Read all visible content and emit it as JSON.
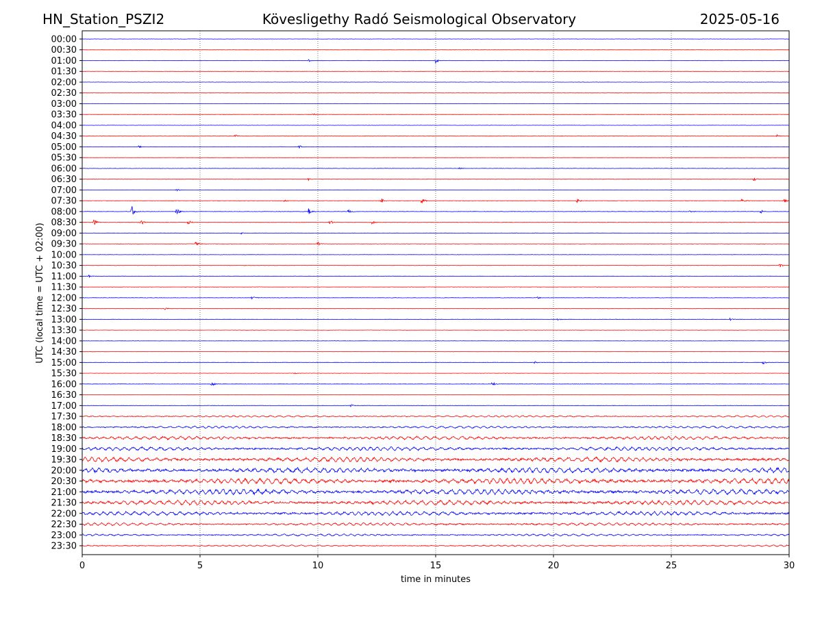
{
  "chart_data": {
    "type": "line",
    "title_left": "HN_Station_PSZI2",
    "title": "Kövesligethy Radó Seismological Observatory",
    "title_right": "2025-05-16",
    "xlabel": "time in minutes",
    "ylabel": "UTC (local time = UTC + 02:00)",
    "xlim": [
      0,
      30
    ],
    "x_ticks": [
      0,
      5,
      10,
      15,
      20,
      25,
      30
    ],
    "x_tick_labels": [
      "0",
      "5",
      "10",
      "15",
      "20",
      "25",
      "30"
    ],
    "grid": "vertical dotted at x ticks",
    "row_labels": [
      "00:00",
      "00:30",
      "01:00",
      "01:30",
      "02:00",
      "02:30",
      "03:00",
      "03:30",
      "04:00",
      "04:30",
      "05:00",
      "05:30",
      "06:00",
      "06:30",
      "07:00",
      "07:30",
      "08:00",
      "08:30",
      "09:00",
      "09:30",
      "10:00",
      "10:30",
      "11:00",
      "11:30",
      "12:00",
      "12:30",
      "13:00",
      "13:30",
      "14:00",
      "14:30",
      "15:00",
      "15:30",
      "16:00",
      "16:30",
      "17:00",
      "17:30",
      "18:00",
      "18:30",
      "19:00",
      "19:30",
      "20:00",
      "20:30",
      "21:00",
      "21:30",
      "22:00",
      "22:30",
      "23:00",
      "23:30"
    ],
    "row_colors": [
      "#0000ff",
      "#ff0000"
    ],
    "noise_level": [
      0.4,
      0.4,
      0.5,
      0.4,
      0.4,
      0.4,
      0.4,
      0.4,
      0.4,
      0.5,
      0.5,
      0.4,
      0.5,
      0.5,
      0.4,
      0.5,
      0.6,
      0.6,
      0.5,
      0.5,
      0.4,
      0.5,
      0.5,
      0.5,
      0.5,
      0.5,
      0.5,
      0.4,
      0.4,
      0.4,
      0.5,
      0.4,
      0.5,
      0.4,
      0.5,
      1.0,
      1.3,
      2.0,
      2.2,
      2.8,
      3.2,
      3.3,
      3.2,
      2.8,
      2.4,
      1.7,
      1.3,
      1.0
    ],
    "events": [
      [
        2,
        9.6,
        2
      ],
      [
        2,
        15.0,
        4
      ],
      [
        7,
        9.8,
        2
      ],
      [
        9,
        6.5,
        3
      ],
      [
        9,
        29.5,
        3
      ],
      [
        10,
        2.4,
        2
      ],
      [
        10,
        9.2,
        3
      ],
      [
        12,
        16.0,
        2
      ],
      [
        13,
        9.6,
        2
      ],
      [
        13,
        28.5,
        3
      ],
      [
        14,
        4.0,
        2
      ],
      [
        15,
        8.6,
        3
      ],
      [
        15,
        12.7,
        4
      ],
      [
        15,
        14.4,
        5
      ],
      [
        15,
        21.0,
        4
      ],
      [
        15,
        28.0,
        3
      ],
      [
        15,
        29.8,
        4
      ],
      [
        16,
        2.1,
        10
      ],
      [
        16,
        4.0,
        7
      ],
      [
        16,
        9.6,
        5
      ],
      [
        16,
        11.3,
        4
      ],
      [
        16,
        25.8,
        3
      ],
      [
        16,
        28.8,
        3
      ],
      [
        17,
        0.5,
        6
      ],
      [
        17,
        2.5,
        5
      ],
      [
        17,
        4.5,
        4
      ],
      [
        17,
        10.5,
        5
      ],
      [
        17,
        12.3,
        3
      ],
      [
        18,
        6.7,
        2
      ],
      [
        19,
        4.8,
        5
      ],
      [
        19,
        10.0,
        3
      ],
      [
        21,
        29.6,
        4
      ],
      [
        22,
        0.3,
        3
      ],
      [
        24,
        7.2,
        3
      ],
      [
        24,
        19.3,
        2
      ],
      [
        25,
        3.5,
        3
      ],
      [
        26,
        20.2,
        2
      ],
      [
        26,
        27.5,
        2
      ],
      [
        30,
        19.2,
        2
      ],
      [
        30,
        28.9,
        3
      ],
      [
        31,
        9.0,
        2
      ],
      [
        32,
        5.5,
        4
      ],
      [
        32,
        17.4,
        4
      ],
      [
        34,
        11.4,
        2
      ]
    ]
  }
}
